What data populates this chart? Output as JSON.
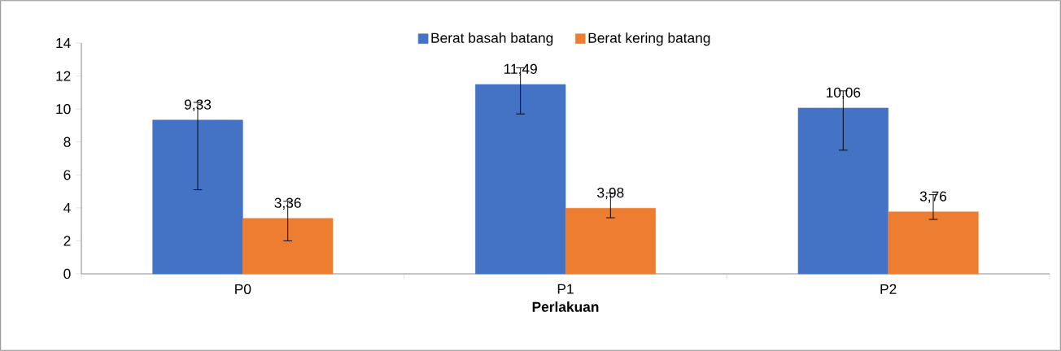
{
  "chart_data": {
    "type": "bar",
    "xlabel": "Perlakuan",
    "categories": [
      "P0",
      "P1",
      "P2"
    ],
    "series": [
      {
        "name": "Berat basah batang",
        "color": "#4472c4",
        "values": [
          9.33,
          11.49,
          10.06
        ],
        "value_labels": [
          "9,33",
          "11,49",
          "10,06"
        ],
        "errors": [
          [
            5.1,
            10.4
          ],
          [
            9.7,
            12.5
          ],
          [
            7.5,
            11.1
          ]
        ]
      },
      {
        "name": "Berat kering batang",
        "color": "#ed7d31",
        "values": [
          3.36,
          3.98,
          3.76
        ],
        "value_labels": [
          "3,36",
          "3,98",
          "3,76"
        ],
        "errors": [
          [
            2.0,
            4.4
          ],
          [
            3.4,
            4.9
          ],
          [
            3.3,
            4.8
          ]
        ]
      }
    ],
    "ylim": [
      0,
      14
    ],
    "yticks": [
      0,
      2,
      4,
      6,
      8,
      10,
      12,
      14
    ],
    "legend": "top",
    "grid": false
  }
}
